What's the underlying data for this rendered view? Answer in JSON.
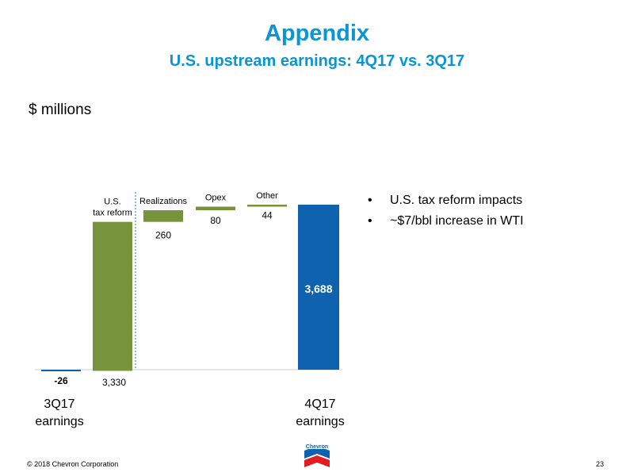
{
  "header": {
    "title": "Appendix",
    "subtitle": "U.S. upstream earnings: 4Q17 vs. 3Q17",
    "units": "$ millions"
  },
  "bullets": [
    "U.S. tax reform impacts",
    "~$7/bbl increase in WTI"
  ],
  "footer": {
    "copyright": "© 2018 Chevron Corporation",
    "page_number": "23",
    "logo_text": "Chevron"
  },
  "colors": {
    "accent": "#0b95d3",
    "bar_blue": "#0e62ae",
    "bar_green": "#77933c",
    "separator": "#2e9e8c"
  },
  "chart_data": {
    "type": "bar",
    "subtype": "waterfall",
    "categories": [
      "3Q17 earnings",
      "U.S. tax reform",
      "Realizations",
      "Opex",
      "Other",
      "4Q17 earnings"
    ],
    "values": [
      -26,
      3330,
      260,
      80,
      44,
      3688
    ],
    "value_labels": [
      "-26",
      "3,330",
      "260",
      "80",
      "44",
      "3,688"
    ],
    "category_labels": [
      {
        "top_labels": [],
        "bottom_labels": [
          "3Q17",
          "earnings"
        ]
      },
      {
        "top_labels": [
          "U.S.",
          "tax reform"
        ],
        "bottom_labels": []
      },
      {
        "top_labels": [
          "Realizations"
        ],
        "bottom_labels": []
      },
      {
        "top_labels": [
          "Opex"
        ],
        "bottom_labels": []
      },
      {
        "top_labels": [
          "Other"
        ],
        "bottom_labels": []
      },
      {
        "top_labels": [],
        "bottom_labels": [
          "4Q17",
          "earnings"
        ]
      }
    ],
    "bar_kinds": [
      "total",
      "delta",
      "delta",
      "delta",
      "delta",
      "total"
    ],
    "bar_colors": [
      "#0e62ae",
      "#77933c",
      "#77933c",
      "#77933c",
      "#77933c",
      "#0e62ae"
    ],
    "title": "",
    "xlabel": "",
    "ylabel": "$ millions",
    "ylim": [
      -26,
      3688
    ],
    "grid": false,
    "legend": "none",
    "separator_after_category": 1
  }
}
